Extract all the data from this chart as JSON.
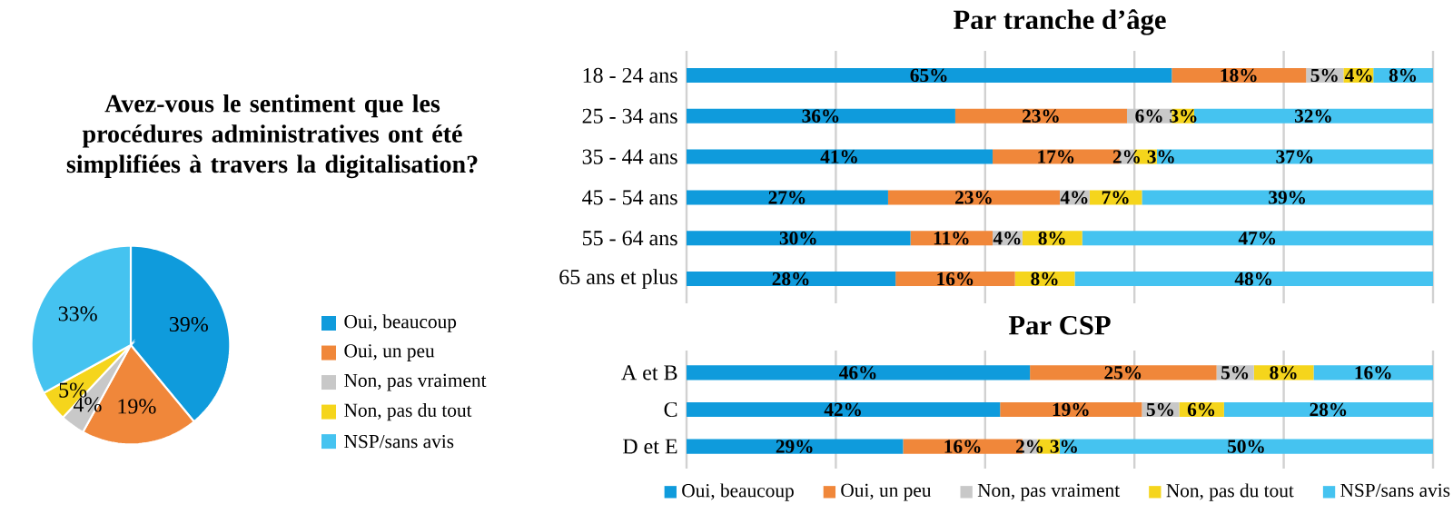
{
  "chart_data": [
    {
      "type": "pie",
      "title": "Avez-vous le sentiment que les procédures administratives ont été simplifiées à travers la digitalisation?",
      "categories": [
        "Oui, beaucoup",
        "Oui, un peu",
        "Non, pas vraiment",
        "Non, pas du tout",
        "NSP/sans avis"
      ],
      "values": [
        39,
        19,
        4,
        5,
        33
      ],
      "colors": [
        "#0f9bdc",
        "#f0873a",
        "#c8c8c8",
        "#f5d51c",
        "#45c3f0"
      ],
      "value_labels": [
        "39%",
        "19%",
        "4%",
        "5%",
        "33%"
      ],
      "legend": "right"
    },
    {
      "type": "bar",
      "orientation": "horizontal",
      "stacked": true,
      "title": "Par tranche d’âge",
      "categories": [
        "18 - 24 ans",
        "25 - 34 ans",
        "35 - 44 ans",
        "45 - 54 ans",
        "55 - 64 ans",
        "65 ans et plus"
      ],
      "xlim": [
        0,
        100
      ],
      "xticks": [
        {
          "value": 0,
          "label": null
        },
        {
          "value": 20,
          "label": null
        },
        {
          "value": 40,
          "label": null
        },
        {
          "value": 60,
          "label": null
        },
        {
          "value": 80,
          "label": null
        },
        {
          "value": 100,
          "label": null
        }
      ],
      "grid": "x",
      "tick_labels": "y",
      "legend": false,
      "series": [
        {
          "color": "#0f9bdc",
          "values": [
            65,
            36,
            41,
            27,
            30,
            28
          ],
          "value_labels": [
            "65%",
            "36%",
            "41%",
            "27%",
            "30%",
            "28%"
          ]
        },
        {
          "color": "#f0873a",
          "values": [
            18,
            23,
            17,
            23,
            11,
            16
          ],
          "value_labels": [
            "18%",
            "23%",
            "17%",
            "23%",
            "11%",
            "16%"
          ]
        },
        {
          "color": "#c8c8c8",
          "values": [
            5,
            6,
            2,
            4,
            4,
            null
          ],
          "value_labels": [
            "5%",
            "6%",
            "2%",
            "4%",
            "4%",
            null
          ]
        },
        {
          "color": "#f5d51c",
          "values": [
            4,
            3,
            3,
            7,
            8,
            8
          ],
          "value_labels": [
            "4%",
            "3%",
            "3%",
            "7%",
            "8%",
            "8%"
          ]
        },
        {
          "color": "#45c3f0",
          "values": [
            8,
            32,
            37,
            39,
            47,
            48
          ],
          "value_labels": [
            "8%",
            "32%",
            "37%",
            "39%",
            "47%",
            "48%"
          ]
        }
      ]
    },
    {
      "type": "bar",
      "orientation": "horizontal",
      "stacked": true,
      "title": "Par CSP",
      "categories": [
        "A et B",
        "C",
        "D et E"
      ],
      "xlim": [
        0,
        100
      ],
      "xticks": [
        {
          "value": 0,
          "label": null
        },
        {
          "value": 20,
          "label": null
        },
        {
          "value": 40,
          "label": null
        },
        {
          "value": 60,
          "label": null
        },
        {
          "value": 80,
          "label": null
        },
        {
          "value": 100,
          "label": null
        }
      ],
      "grid": "x",
      "tick_labels": "y",
      "legend": "bottom",
      "series": [
        {
          "name": "Oui, beaucoup",
          "color": "#0f9bdc",
          "values": [
            46,
            42,
            29
          ],
          "value_labels": [
            "46%",
            "42%",
            "29%"
          ]
        },
        {
          "name": "Oui, un peu",
          "color": "#f0873a",
          "values": [
            25,
            19,
            16
          ],
          "value_labels": [
            "25%",
            "19%",
            "16%"
          ]
        },
        {
          "name": "Non, pas vraiment",
          "color": "#c8c8c8",
          "values": [
            5,
            5,
            2
          ],
          "value_labels": [
            "5%",
            "5%",
            "2%"
          ]
        },
        {
          "name": "Non, pas du tout",
          "color": "#f5d51c",
          "values": [
            8,
            6,
            3
          ],
          "value_labels": [
            "8%",
            "6%",
            "3%"
          ]
        },
        {
          "name": "NSP/sans avis",
          "color": "#45c3f0",
          "values": [
            16,
            28,
            50
          ],
          "value_labels": [
            "16%",
            "28%",
            "50%"
          ]
        }
      ]
    }
  ]
}
